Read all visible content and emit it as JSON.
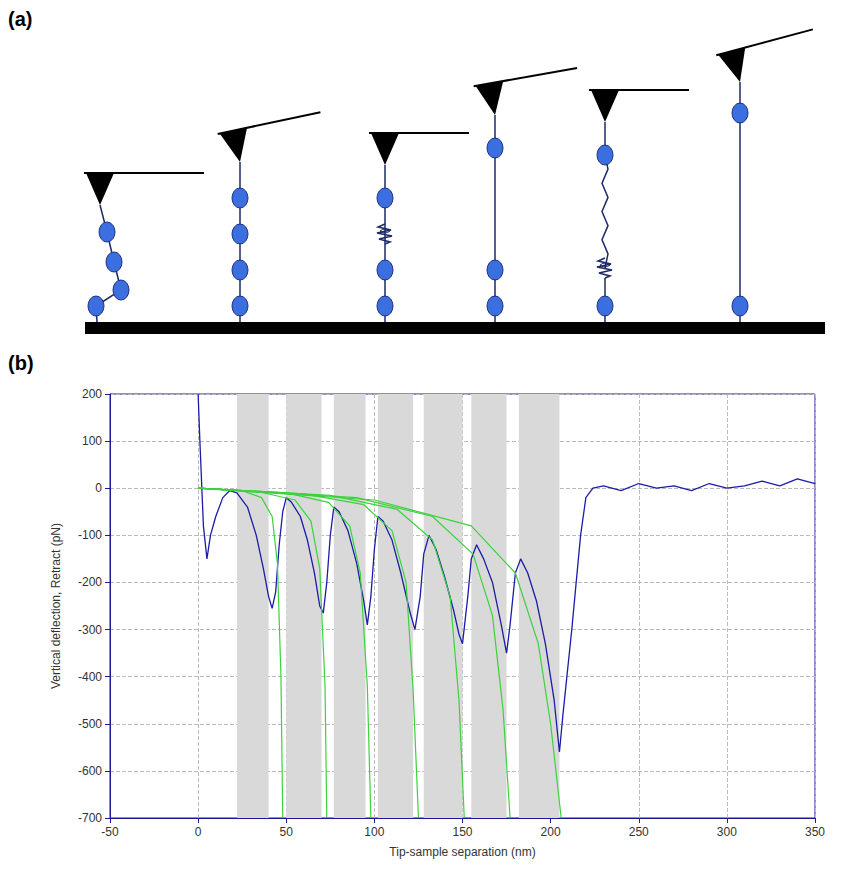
{
  "panel_labels": [
    "(a)",
    "(b)"
  ],
  "chart_data": {
    "type": "line",
    "x_label": "Tip-sample separation (nm)",
    "y_label": "Vertical deflection, Retract (pN)",
    "xlim": [
      -50,
      350
    ],
    "xticks": [
      -50,
      0,
      50,
      100,
      150,
      200,
      250,
      300,
      350
    ],
    "ylim": [
      -700,
      200
    ],
    "yticks": [
      -700,
      -600,
      -500,
      -400,
      -300,
      -200,
      -100,
      0,
      100,
      200
    ],
    "grid": true,
    "shaded_ranges": [
      [
        22,
        40
      ],
      [
        50,
        70
      ],
      [
        77,
        95
      ],
      [
        102,
        122
      ],
      [
        128,
        150
      ],
      [
        155,
        175
      ],
      [
        182,
        205
      ]
    ],
    "series": [
      {
        "color": "#1c1ca8",
        "line_style": "solid",
        "x": [
          0,
          1,
          3,
          5,
          7,
          10,
          14,
          18,
          22,
          28,
          33,
          37,
          40,
          42,
          44,
          46,
          48,
          50,
          53,
          58,
          62,
          66,
          69,
          71,
          73,
          75,
          77,
          80,
          85,
          90,
          94,
          96,
          98,
          100,
          102,
          105,
          110,
          115,
          120,
          123,
          126,
          128,
          131,
          135,
          140,
          145,
          148,
          150,
          153,
          155,
          158,
          162,
          167,
          172,
          175,
          177,
          180,
          183,
          187,
          192,
          197,
          202,
          205,
          207,
          212,
          217,
          220,
          224,
          230,
          240,
          250,
          260,
          270,
          280,
          290,
          300,
          310,
          320,
          330,
          340,
          350
        ],
        "values": [
          200,
          100,
          -80,
          -150,
          -100,
          -60,
          -20,
          -5,
          -10,
          -40,
          -100,
          -170,
          -230,
          -255,
          -220,
          -120,
          -50,
          -20,
          -30,
          -60,
          -110,
          -180,
          -250,
          -265,
          -200,
          -100,
          -40,
          -50,
          -90,
          -160,
          -240,
          -290,
          -230,
          -130,
          -60,
          -70,
          -110,
          -180,
          -260,
          -300,
          -230,
          -140,
          -100,
          -130,
          -190,
          -260,
          -310,
          -330,
          -230,
          -150,
          -120,
          -150,
          -200,
          -290,
          -350,
          -290,
          -180,
          -150,
          -180,
          -240,
          -330,
          -450,
          -560,
          -480,
          -300,
          -100,
          -20,
          0,
          5,
          -5,
          10,
          0,
          5,
          -5,
          10,
          0,
          5,
          15,
          5,
          20,
          10
        ]
      },
      {
        "color": "#3cd23c",
        "line_style": "solid",
        "x": [
          0,
          25,
          36,
          42,
          45,
          47,
          48
        ],
        "values": [
          0,
          -5,
          -20,
          -60,
          -160,
          -400,
          -700
        ]
      },
      {
        "color": "#3cd23c",
        "line_style": "solid",
        "x": [
          0,
          35,
          55,
          64,
          69,
          72,
          73
        ],
        "values": [
          0,
          -8,
          -25,
          -70,
          -170,
          -420,
          -700
        ]
      },
      {
        "color": "#3cd23c",
        "line_style": "solid",
        "x": [
          0,
          50,
          74,
          86,
          92,
          96,
          98
        ],
        "values": [
          0,
          -10,
          -30,
          -80,
          -180,
          -420,
          -700
        ]
      },
      {
        "color": "#3cd23c",
        "line_style": "solid",
        "x": [
          0,
          60,
          94,
          110,
          118,
          122,
          125
        ],
        "values": [
          0,
          -12,
          -35,
          -90,
          -200,
          -430,
          -700
        ]
      },
      {
        "color": "#3cd23c",
        "line_style": "solid",
        "x": [
          0,
          75,
          113,
          133,
          143,
          148,
          151
        ],
        "values": [
          0,
          -15,
          -45,
          -110,
          -230,
          -450,
          -700
        ]
      },
      {
        "color": "#3cd23c",
        "line_style": "solid",
        "x": [
          0,
          90,
          133,
          156,
          167,
          173,
          177
        ],
        "values": [
          0,
          -20,
          -60,
          -140,
          -270,
          -470,
          -700
        ]
      },
      {
        "color": "#3cd23c",
        "line_style": "solid",
        "x": [
          0,
          100,
          155,
          180,
          193,
          200,
          206
        ],
        "values": [
          0,
          -25,
          -80,
          -180,
          -330,
          -500,
          -700
        ]
      }
    ]
  }
}
